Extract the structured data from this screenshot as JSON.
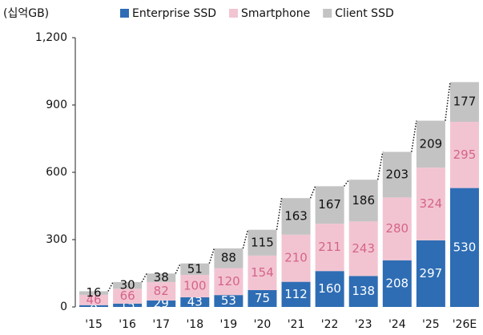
{
  "chart_data": {
    "type": "stacked_bar",
    "y_axis_label": "(십억GB)",
    "categories": [
      "'15",
      "'16",
      "'17",
      "'18",
      "'19",
      "'20",
      "'21",
      "'22",
      "'23",
      "'24",
      "'25",
      "'26E"
    ],
    "series": [
      {
        "name": "Enterprise SSD",
        "color": "#2e6db4",
        "label_color": "#ffffff",
        "values": [
          8,
          15,
          29,
          43,
          53,
          75,
          112,
          160,
          138,
          208,
          297,
          530
        ]
      },
      {
        "name": "Smartphone",
        "color": "#f2c4d2",
        "label_color": "#d5648a",
        "values": [
          46,
          66,
          82,
          100,
          120,
          154,
          210,
          211,
          243,
          280,
          324,
          295
        ]
      },
      {
        "name": "Client SSD",
        "color": "#c3c3c3",
        "label_color": "#111111",
        "values": [
          16,
          30,
          38,
          51,
          88,
          115,
          163,
          167,
          186,
          203,
          209,
          177
        ]
      }
    ],
    "ylim": [
      0,
      1200
    ],
    "yticks": [
      0,
      300,
      600,
      900,
      {
        "value": 1200,
        "label": "1,200"
      }
    ]
  }
}
